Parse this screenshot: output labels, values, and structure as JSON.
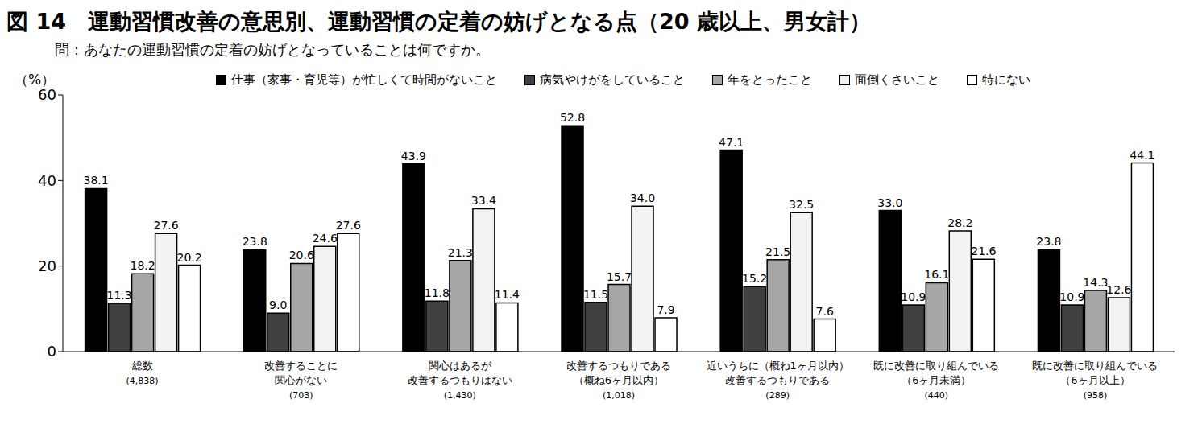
{
  "chart_data": {
    "type": "bar",
    "title": "図 14　運動習慣改善の意思別、運動習慣の定着の妨げとなる点（20 歳以上、男女計）",
    "subtitle": "問：あなたの運動習慣の定着の妨げとなっていることは何ですか。",
    "y_label": "（%）",
    "categories": [
      "総数\n(4,838)",
      "改善することに\n関心がない\n(703)",
      "関心はあるが\n改善するつもりはない\n(1,430)",
      "改善するつもりである\n（概ね6ヶ月以内）\n(1,018)",
      "近いうちに（概ね1ヶ月以内）\n改善するつもりである\n(289)",
      "既に改善に取り組んでいる\n（6ヶ月未満）\n(440)",
      "既に改善に取り組んでいる\n（6ヶ月以上）\n(958)"
    ],
    "series": [
      {
        "name": "仕事（家事・育児等）が忙しくて時間がないこと",
        "color": "#000000",
        "values": [
          38.1,
          23.8,
          43.9,
          52.8,
          47.1,
          33.0,
          23.8
        ],
        "value_labels": [
          "38.1",
          "23.8",
          "43.9",
          "52.8",
          "47.1",
          "33.0",
          "23.8"
        ]
      },
      {
        "name": "病気やけがをしていること",
        "color": "#404040",
        "values": [
          11.3,
          9.0,
          11.8,
          11.5,
          15.2,
          10.9,
          10.9
        ],
        "value_labels": [
          "11.3",
          "9.0",
          "11.8",
          "11.5",
          "15.2",
          "10.9",
          "10.9"
        ]
      },
      {
        "name": "年をとったこと",
        "color": "#a6a6a6",
        "values": [
          18.2,
          20.6,
          21.3,
          15.7,
          21.5,
          16.1,
          14.3
        ],
        "value_labels": [
          "18.2",
          "20.6",
          "21.3",
          "15.7",
          "21.5",
          "16.1",
          "14.3"
        ]
      },
      {
        "name": "面倒くさいこと",
        "color": "#f2f2f2",
        "values": [
          27.6,
          24.6,
          33.4,
          34.0,
          32.5,
          28.2,
          12.6
        ],
        "value_labels": [
          "27.6",
          "24.6",
          "33.4",
          "34.0",
          "32.5",
          "28.2",
          "12.6"
        ]
      },
      {
        "name": "特にない",
        "color": "#ffffff",
        "values": [
          20.2,
          27.6,
          11.4,
          7.9,
          7.6,
          21.6,
          44.1
        ],
        "value_labels": [
          "20.2",
          "27.6",
          "11.4",
          "7.9",
          "7.6",
          "21.6",
          "44.1"
        ]
      }
    ],
    "ylim": [
      0,
      60
    ],
    "yticks": [
      0,
      20,
      40,
      60
    ],
    "grid": false,
    "legend": "top",
    "data_labels": true
  }
}
